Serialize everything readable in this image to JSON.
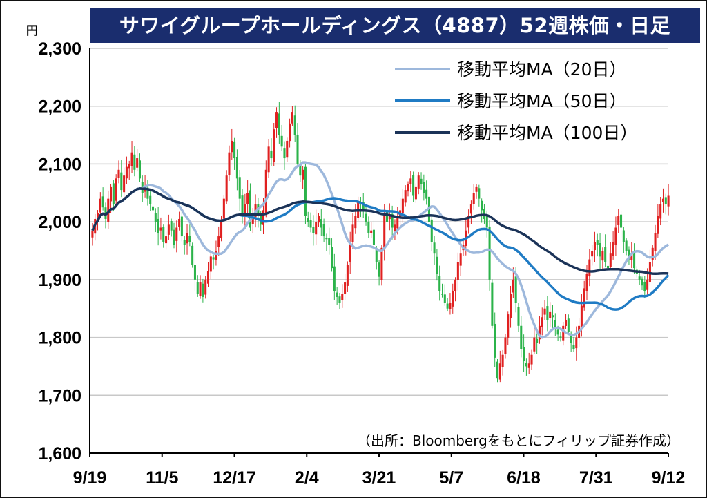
{
  "chart_data": {
    "type": "candlestick",
    "title": "サワイグループホールディングス（4887）52週株価・日足",
    "unit_label": "円",
    "source_note": "（出所：Bloombergをもとにフィリップ証券作成）",
    "ylim": [
      1600,
      2300
    ],
    "y_ticks": [
      "1,600",
      "1,700",
      "1,800",
      "1,900",
      "2,000",
      "2,100",
      "2,200",
      "2,300"
    ],
    "y_tick_values": [
      1600,
      1700,
      1800,
      1900,
      2000,
      2100,
      2200,
      2300
    ],
    "x_ticks": [
      "9/19",
      "11/5",
      "12/17",
      "2/4",
      "3/21",
      "5/7",
      "6/18",
      "7/31",
      "9/12"
    ],
    "grid": true,
    "legend_position": "top-right",
    "colors": {
      "up": "#e02020",
      "down": "#2bb34a",
      "ma20": "#9db8dc",
      "ma50": "#1f7bc4",
      "ma100": "#1b3358",
      "title_bg": "#1a2d6e"
    },
    "legend": [
      "移動平均MA（20日）",
      "移動平均MA（50日）",
      "移動平均MA（100日）"
    ],
    "close": [
      1985,
      2005,
      2015,
      2040,
      2025,
      2005,
      2040,
      2060,
      2030,
      2075,
      2090,
      2055,
      2080,
      2095,
      2100,
      2120,
      2090,
      2110,
      2075,
      2050,
      2060,
      2040,
      2030,
      2020,
      2000,
      1980,
      1990,
      1965,
      1975,
      1995,
      1985,
      1960,
      1990,
      2005,
      1975,
      1960,
      1980,
      1965,
      1925,
      1900,
      1875,
      1895,
      1870,
      1900,
      1915,
      1940,
      1935,
      1950,
      1975,
      2000,
      2040,
      2080,
      2120,
      2140,
      2110,
      2075,
      2040,
      2010,
      2030,
      2050,
      1990,
      2010,
      2030,
      2010,
      1995,
      2020,
      2090,
      2130,
      2110,
      2160,
      2190,
      2150,
      2130,
      2110,
      2140,
      2170,
      2190,
      2150,
      2100,
      2080,
      2090,
      2010,
      2000,
      1990,
      1980,
      2000,
      2010,
      1990,
      1975,
      1970,
      1960,
      1920,
      1880,
      1870,
      1860,
      1875,
      1895,
      1925,
      1965,
      1995,
      2010,
      2035,
      2030,
      2020,
      2000,
      1980,
      1985,
      1960,
      1930,
      1905,
      1955,
      2015,
      2000,
      2010,
      1990,
      1995,
      2010,
      2020,
      2040,
      2055,
      2065,
      2075,
      2045,
      2060,
      2080,
      2065,
      2050,
      2040,
      2000,
      1965,
      1945,
      1910,
      1880,
      1875,
      1860,
      1850,
      1860,
      1880,
      1900,
      1930,
      1945,
      1960,
      1985,
      2010,
      2030,
      2050,
      2060,
      2040,
      2020,
      2005,
      1990,
      1900,
      1820,
      1765,
      1730,
      1755,
      1770,
      1800,
      1840,
      1875,
      1900,
      1860,
      1820,
      1780,
      1760,
      1750,
      1755,
      1770,
      1800,
      1790,
      1820,
      1835,
      1850,
      1830,
      1845,
      1835,
      1815,
      1805,
      1800,
      1820,
      1830,
      1810,
      1790,
      1780,
      1800,
      1820,
      1855,
      1885,
      1910,
      1935,
      1950,
      1965,
      1960,
      1940,
      1950,
      1930,
      1920,
      1945,
      1965,
      1990,
      2010,
      1990,
      1965,
      1950,
      1935,
      1945,
      1920,
      1910,
      1900,
      1890,
      1880,
      1900,
      1930,
      1955,
      1980,
      2010,
      2030,
      2040,
      2030,
      2045
    ]
  }
}
